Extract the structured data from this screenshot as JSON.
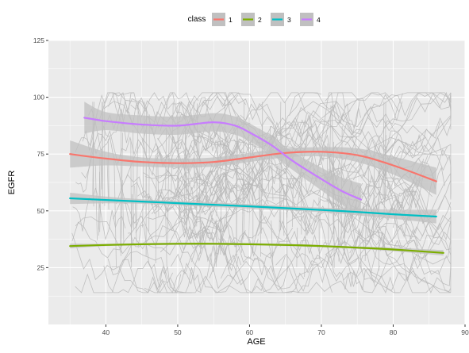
{
  "chart_data": {
    "type": "line",
    "xlabel": "AGE",
    "ylabel": "EGFR",
    "xlim": [
      32,
      90
    ],
    "ylim": [
      0,
      125
    ],
    "xticks": [
      40,
      50,
      60,
      70,
      80,
      90
    ],
    "yticks": [
      25,
      50,
      75,
      100,
      125
    ],
    "grid": true,
    "legend": {
      "title": "class",
      "placement": "top",
      "entries": [
        "1",
        "2",
        "3",
        "4"
      ]
    },
    "colors": {
      "panel_bg": "#ebebeb",
      "grid": "#ffffff",
      "ribbon": "#c0c0c0",
      "spaghetti": "#b8b8b8",
      "class_1": "#f8766d",
      "class_2": "#7cae00",
      "class_3": "#00bfc4",
      "class_4": "#c77cff"
    },
    "series": [
      {
        "name": "1",
        "x": [
          35,
          40,
          45,
          50,
          55,
          60,
          65,
          70,
          75,
          80,
          86
        ],
        "y": [
          75,
          73,
          71.5,
          71,
          71.5,
          73.5,
          75.5,
          76,
          74.5,
          70,
          63
        ],
        "band": [
          6,
          3,
          2,
          2,
          2,
          2,
          2,
          2,
          3,
          4,
          6
        ]
      },
      {
        "name": "2",
        "x": [
          35,
          40,
          45,
          50,
          55,
          60,
          65,
          70,
          75,
          80,
          87
        ],
        "y": [
          34.5,
          35,
          35.3,
          35.5,
          35.5,
          35.3,
          35,
          34.5,
          33.8,
          33,
          31.5
        ],
        "band": [
          1,
          0.5,
          0.5,
          0.5,
          0.5,
          0.5,
          0.5,
          0.5,
          0.5,
          0.8,
          1.2
        ]
      },
      {
        "name": "3",
        "x": [
          35,
          40,
          45,
          50,
          55,
          60,
          65,
          70,
          75,
          80,
          86
        ],
        "y": [
          55.5,
          54.8,
          54.1,
          53.4,
          52.7,
          52,
          51.2,
          50.4,
          49.5,
          48.5,
          47.5
        ],
        "band": [
          2.5,
          1.5,
          1,
          1,
          1,
          1,
          1,
          1,
          1.5,
          2,
          3
        ]
      },
      {
        "name": "4",
        "x": [
          37,
          40,
          45,
          50,
          55,
          58,
          60,
          63,
          66,
          70,
          73,
          75.5
        ],
        "y": [
          91,
          89.5,
          88,
          87.5,
          89,
          87.5,
          84.5,
          79,
          72,
          64,
          58.5,
          55
        ],
        "band": [
          7,
          4,
          4,
          4,
          4,
          4,
          4,
          4,
          4,
          5,
          6,
          7
        ]
      }
    ]
  }
}
